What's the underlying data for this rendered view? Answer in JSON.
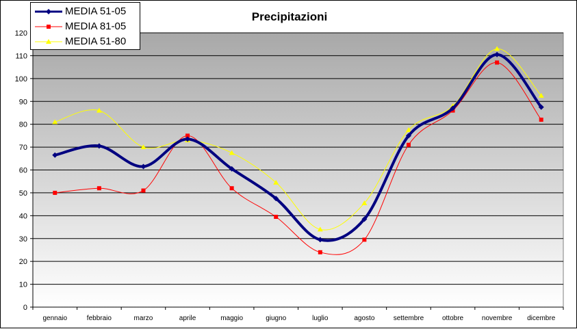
{
  "chart_data": {
    "type": "line",
    "title": "Precipitazioni",
    "xlabel": "",
    "ylabel": "",
    "ylim": [
      0,
      120
    ],
    "yticks": [
      0,
      10,
      20,
      30,
      40,
      50,
      60,
      70,
      80,
      90,
      100,
      110,
      120
    ],
    "grid": true,
    "legend_position": "top-left",
    "categories": [
      "gennaio",
      "febbraio",
      "marzo",
      "aprile",
      "maggio",
      "giugno",
      "luglio",
      "agosto",
      "settembre",
      "ottobre",
      "novembre",
      "dicembre"
    ],
    "series": [
      {
        "name": "MEDIA 51-05",
        "color": "#000080",
        "marker": "diamond",
        "values": [
          66.5,
          70.5,
          61.5,
          73.5,
          60.5,
          47.5,
          29.5,
          38.5,
          75,
          87,
          110.5,
          87.5
        ]
      },
      {
        "name": "MEDIA 81-05",
        "color": "#ff0000",
        "marker": "square",
        "values": [
          50,
          52,
          51,
          75,
          52,
          39.5,
          24,
          29.5,
          71,
          86,
          107,
          82
        ]
      },
      {
        "name": "MEDIA 51-80",
        "color": "#ffff00",
        "marker": "triangle",
        "values": [
          81,
          86,
          70,
          73,
          67.5,
          54.5,
          34,
          45.5,
          77.5,
          88,
          113,
          92.5
        ]
      }
    ]
  }
}
